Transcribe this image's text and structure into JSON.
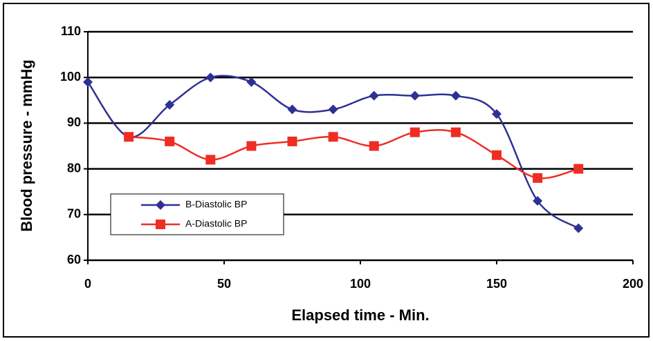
{
  "chart_data": {
    "type": "line",
    "x_label": "Elapsed time - Min.",
    "y_label": "Blood pressure - mmHg",
    "x": [
      0,
      15,
      30,
      45,
      60,
      75,
      90,
      105,
      120,
      135,
      150,
      165,
      180
    ],
    "series": [
      {
        "name": "B-Diastolic BP",
        "color": "#2e3192",
        "marker": "diamond",
        "values": [
          99,
          87,
          94,
          100,
          99,
          93,
          93,
          96,
          96,
          96,
          92,
          73,
          67
        ]
      },
      {
        "name": "A-Diastolic BP",
        "color": "#ee2d24",
        "marker": "square",
        "values": [
          null,
          87,
          86,
          82,
          85,
          86,
          87,
          85,
          88,
          88,
          83,
          78,
          80
        ]
      }
    ],
    "xlim": [
      0,
      200
    ],
    "xticks": [
      0,
      50,
      100,
      150,
      200
    ],
    "ylim": [
      60,
      110
    ],
    "yticks": [
      60,
      70,
      80,
      90,
      100,
      110
    ],
    "grid": true,
    "smooth": true
  }
}
